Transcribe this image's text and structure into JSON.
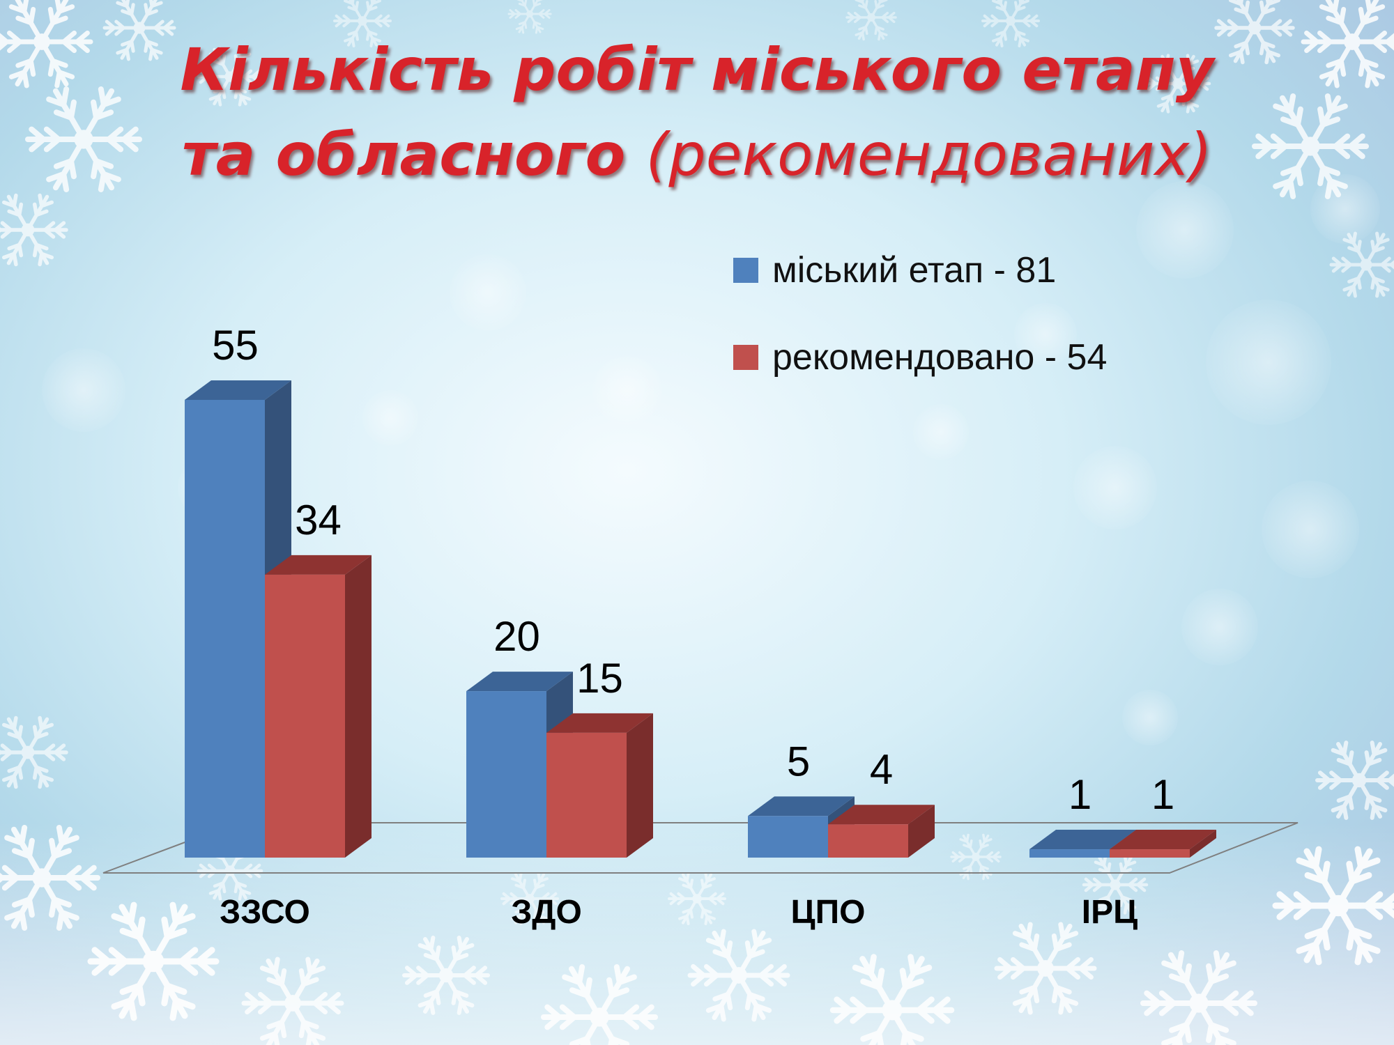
{
  "title": {
    "line1": "Кількість робіт міського етапу",
    "line2_bold": "та обласного ",
    "line2_light": "(рекомендованих)"
  },
  "colors": {
    "series1": "#4f81bd",
    "series1_top": "#3c6496",
    "series1_side": "#34527a",
    "series2": "#c0504d",
    "series2_top": "#8e3331",
    "series2_side": "#7a2d2c",
    "floor": "#7f7f7f",
    "title": "#d8232a"
  },
  "chart_data": {
    "type": "bar",
    "categories": [
      "ЗЗСО",
      "ЗДО",
      "ЦПО",
      "ІРЦ"
    ],
    "series": [
      {
        "name": "міський етап - 81",
        "values": [
          55,
          20,
          5,
          1
        ]
      },
      {
        "name": "рекомендовано - 54",
        "values": [
          34,
          15,
          4,
          1
        ]
      }
    ],
    "data_labels": true,
    "ylim": [
      0,
      55
    ],
    "legend": "top-right",
    "grid": false
  }
}
